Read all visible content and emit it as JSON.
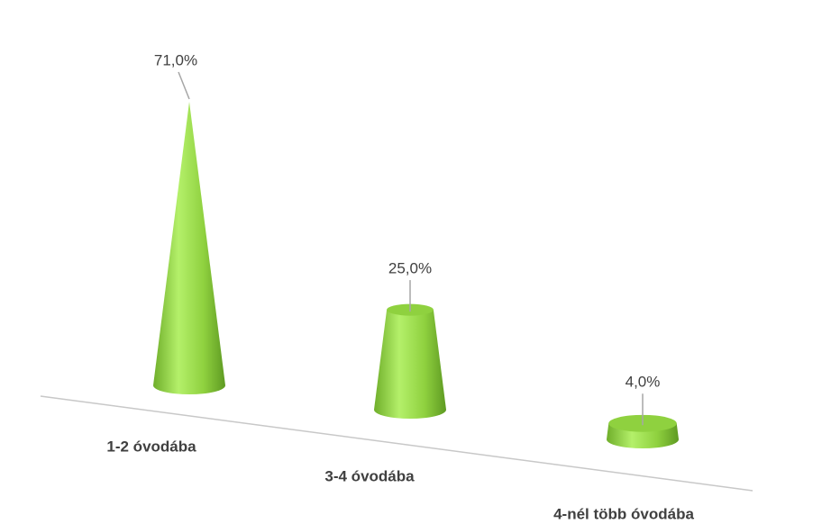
{
  "chart_data": {
    "type": "cone",
    "categories": [
      "1-2 óvodába",
      "3-4 óvodába",
      "4-nél több óvodába"
    ],
    "values": [
      71,
      25,
      4
    ],
    "value_labels": [
      "71,0%",
      "25,0%",
      "4,0%"
    ],
    "color": "#8fd13f"
  }
}
